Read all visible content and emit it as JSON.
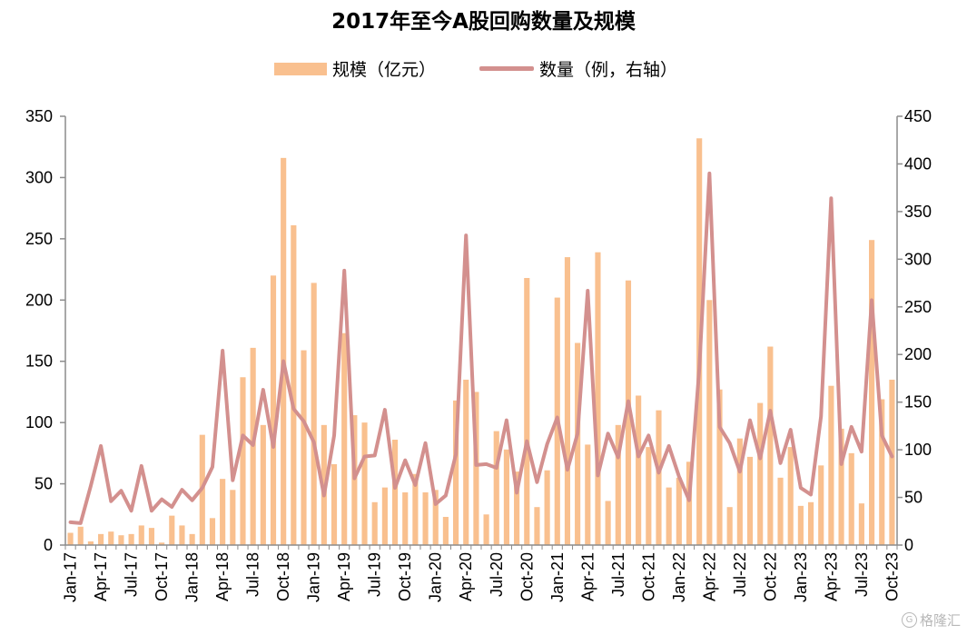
{
  "chart_data": {
    "type": "bar+line",
    "title": "2017年至今A股回购数量及规模",
    "legend_position": "top-center",
    "grid": false,
    "y_left": {
      "label": "",
      "ylim": [
        0,
        350
      ],
      "ticks": [
        0,
        50,
        100,
        150,
        200,
        250,
        300,
        350
      ]
    },
    "y_right": {
      "label": "",
      "ylim": [
        0,
        450
      ],
      "ticks": [
        0,
        50,
        100,
        150,
        200,
        250,
        300,
        350,
        400,
        450
      ]
    },
    "x_tick_labels": [
      "Jan-17",
      "Apr-17",
      "Jul-17",
      "Oct-17",
      "Jan-18",
      "Apr-18",
      "Jul-18",
      "Oct-18",
      "Jan-19",
      "Apr-19",
      "Jul-19",
      "Oct-19",
      "Jan-20",
      "Apr-20",
      "Jul-20",
      "Oct-20",
      "Jan-21",
      "Apr-21",
      "Jul-21",
      "Oct-21",
      "Jan-22",
      "Apr-22",
      "Jul-22",
      "Oct-22",
      "Jan-23",
      "Apr-23",
      "Jul-23",
      "Oct-23"
    ],
    "x_tick_every": 3,
    "x": [
      "Jan-17",
      "Feb-17",
      "Mar-17",
      "Apr-17",
      "May-17",
      "Jun-17",
      "Jul-17",
      "Aug-17",
      "Sep-17",
      "Oct-17",
      "Nov-17",
      "Dec-17",
      "Jan-18",
      "Feb-18",
      "Mar-18",
      "Apr-18",
      "May-18",
      "Jun-18",
      "Jul-18",
      "Aug-18",
      "Sep-18",
      "Oct-18",
      "Nov-18",
      "Dec-18",
      "Jan-19",
      "Feb-19",
      "Mar-19",
      "Apr-19",
      "May-19",
      "Jun-19",
      "Jul-19",
      "Aug-19",
      "Sep-19",
      "Oct-19",
      "Nov-19",
      "Dec-19",
      "Jan-20",
      "Feb-20",
      "Mar-20",
      "Apr-20",
      "May-20",
      "Jun-20",
      "Jul-20",
      "Aug-20",
      "Sep-20",
      "Oct-20",
      "Nov-20",
      "Dec-20",
      "Jan-21",
      "Feb-21",
      "Mar-21",
      "Apr-21",
      "May-21",
      "Jun-21",
      "Jul-21",
      "Aug-21",
      "Sep-21",
      "Oct-21",
      "Nov-21",
      "Dec-21",
      "Jan-22",
      "Feb-22",
      "Mar-22",
      "Apr-22",
      "May-22",
      "Jun-22",
      "Jul-22",
      "Aug-22",
      "Sep-22",
      "Oct-22",
      "Nov-22",
      "Dec-22",
      "Jan-23",
      "Feb-23",
      "Mar-23",
      "Apr-23",
      "May-23",
      "Jun-23",
      "Jul-23",
      "Aug-23",
      "Sep-23",
      "Oct-23"
    ],
    "series": [
      {
        "name": "规模（亿元）",
        "type": "bar",
        "axis": "left",
        "color": "#F9C08F",
        "values": [
          10,
          15,
          3,
          9,
          11,
          8,
          9,
          16,
          14,
          2,
          24,
          16,
          9,
          90,
          22,
          54,
          45,
          137,
          161,
          98,
          220,
          316,
          261,
          159,
          214,
          98,
          66,
          173,
          106,
          100,
          35,
          47,
          86,
          43,
          58,
          43,
          45,
          23,
          118,
          135,
          125,
          25,
          93,
          78,
          60,
          218,
          31,
          61,
          202,
          235,
          165,
          82,
          239,
          36,
          98,
          216,
          122,
          80,
          110,
          47,
          55,
          68,
          332,
          200,
          127,
          31,
          87,
          72,
          116,
          162,
          55,
          80,
          32,
          35,
          65,
          130,
          95,
          75,
          34,
          249,
          119,
          135
        ]
      },
      {
        "name": "数量（例，右轴）",
        "type": "line",
        "axis": "right",
        "color": "#D3908E",
        "values": [
          24,
          23,
          62,
          104,
          46,
          57,
          36,
          83,
          36,
          48,
          40,
          58,
          47,
          60,
          82,
          204,
          68,
          115,
          105,
          163,
          103,
          193,
          143,
          130,
          108,
          52,
          115,
          288,
          70,
          93,
          94,
          142,
          60,
          89,
          63,
          107,
          43,
          52,
          95,
          325,
          84,
          85,
          81,
          131,
          55,
          109,
          66,
          106,
          134,
          79,
          117,
          267,
          73,
          117,
          92,
          151,
          93,
          115,
          76,
          104,
          72,
          47,
          185,
          390,
          124,
          107,
          77,
          131,
          91,
          141,
          86,
          121,
          60,
          53,
          135,
          364,
          85,
          124,
          98,
          257,
          115,
          93
        ]
      }
    ]
  },
  "legend": {
    "bar_label": "规模（亿元）",
    "line_label": "数量（例，右轴）"
  },
  "watermark": {
    "text": "格隆汇",
    "icon": "G"
  }
}
